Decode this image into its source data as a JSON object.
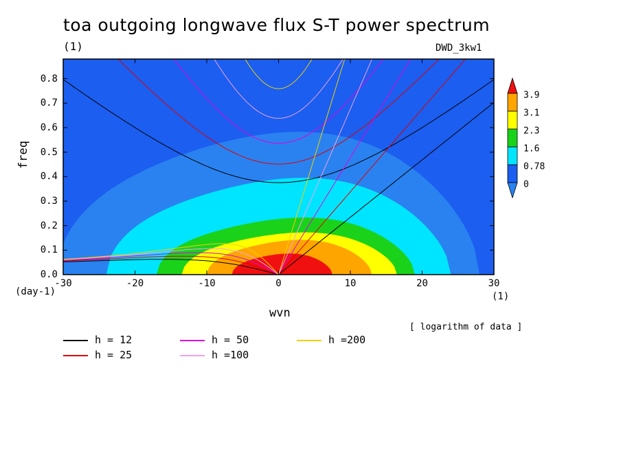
{
  "chart_data": {
    "type": "heatmap",
    "title": "toa outgoing longwave flux S-T power spectrum",
    "units_label": "(1)",
    "dataset": "DWD_3kw1",
    "xlabel": "wvn",
    "ylabel": "freq",
    "x_units": "(1)",
    "y_units": "(day-1)",
    "note": "[ logarithm of data ]",
    "xlim": [
      -30,
      30
    ],
    "ylim": [
      0,
      0.88
    ],
    "x_ticks": [
      -30,
      -20,
      -10,
      0,
      10,
      20,
      30
    ],
    "x_tick_labels": [
      "-30",
      "-20",
      "-10",
      "0",
      "10",
      "20",
      "30"
    ],
    "y_ticks": [
      0,
      0.1,
      0.2,
      0.3,
      0.4,
      0.5,
      0.6,
      0.7,
      0.8
    ],
    "y_tick_labels": [
      "0.0",
      "0.1",
      "0.2",
      "0.3",
      "0.4",
      "0.5",
      "0.6",
      "0.7",
      "0.8"
    ],
    "colorbar": {
      "levels": [
        "0",
        "0.78",
        "1.6",
        "2.3",
        "3.1",
        "3.9"
      ],
      "colors": [
        "#2a82f0",
        "#1b5ef0",
        "#00e5ff",
        "#1bd21b",
        "#ffff00",
        "#ffa500",
        "#f01010"
      ]
    },
    "contour_regions": [
      {
        "level": "0",
        "color": "#2a82f0",
        "center_x": -1.5,
        "half_width": 29.5,
        "peak_freq": 0.575
      },
      {
        "level": "0.78",
        "color": "#00e5ff",
        "center_x": 0,
        "half_width": 24,
        "peak_freq": 0.39
      },
      {
        "level": "1.6",
        "color": "#1bd21b",
        "center_x": 1,
        "half_width": 18,
        "peak_freq": 0.23
      },
      {
        "level": "2.3",
        "color": "#ffff00",
        "center_x": 1.5,
        "half_width": 15,
        "peak_freq": 0.17
      },
      {
        "level": "3.1",
        "color": "#ffa500",
        "center_x": 1.5,
        "half_width": 11.5,
        "peak_freq": 0.14
      },
      {
        "level": "3.9",
        "color": "#f01010",
        "center_x": 0.5,
        "half_width": 7,
        "peak_freq": 0.085
      }
    ],
    "dispersion_curves": [
      {
        "name": "h = 12",
        "color": "#000000",
        "equiv_depth": 12
      },
      {
        "name": "h = 25",
        "color": "#e00000",
        "equiv_depth": 25
      },
      {
        "name": "h = 50",
        "color": "#e000e0",
        "equiv_depth": 50
      },
      {
        "name": "h =100",
        "color": "#f0a0f0",
        "equiv_depth": 100
      },
      {
        "name": "h =200",
        "color": "#f0d000",
        "equiv_depth": 200
      }
    ]
  }
}
